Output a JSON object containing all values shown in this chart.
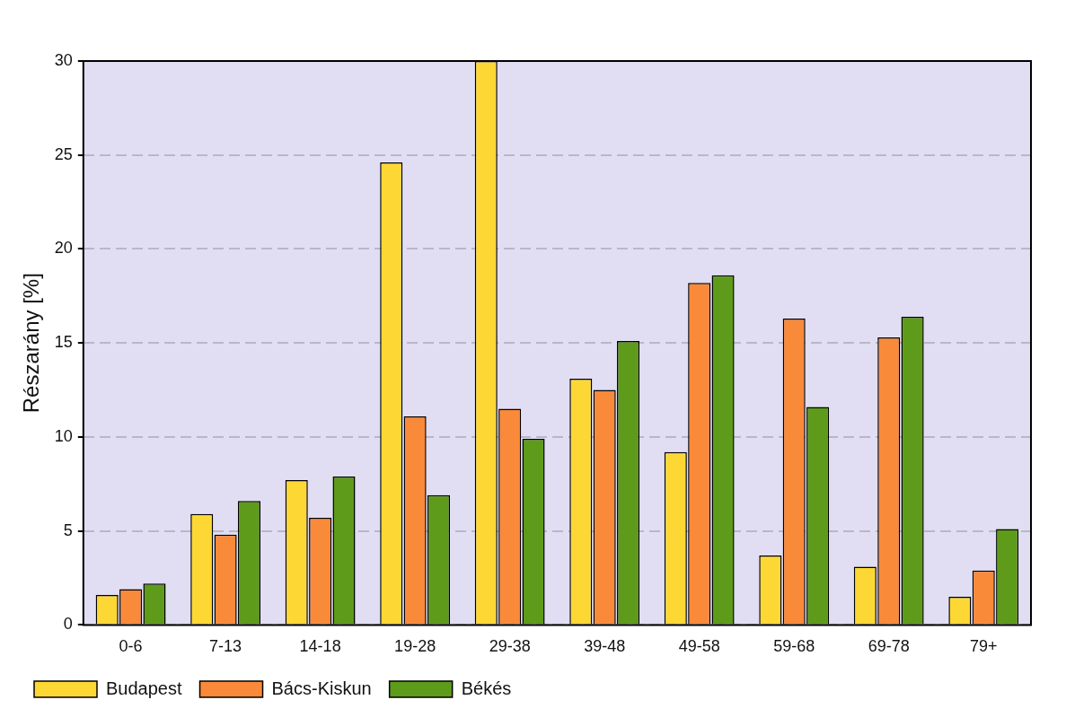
{
  "chart_data": {
    "type": "bar",
    "ylabel": "Részarány [%]",
    "categories": [
      "0-6",
      "7-13",
      "14-18",
      "19-28",
      "29-38",
      "39-48",
      "49-58",
      "59-68",
      "69-78",
      "79+"
    ],
    "series": [
      {
        "name": "Budapest",
        "color": "#fdd835",
        "values": [
          1.6,
          5.9,
          7.7,
          24.6,
          30,
          13.1,
          9.2,
          3.7,
          3.1,
          1.5
        ]
      },
      {
        "name": "Bács-Kiskun",
        "color": "#f98a3a",
        "values": [
          1.9,
          4.8,
          5.7,
          11.1,
          11.5,
          12.5,
          18.2,
          16.3,
          15.3,
          2.9
        ]
      },
      {
        "name": "Békés",
        "color": "#5e9b1a",
        "values": [
          2.2,
          6.6,
          7.9,
          6.9,
          9.9,
          15.1,
          18.6,
          11.6,
          16.4,
          5.1
        ]
      }
    ],
    "ylim": [
      0,
      30
    ],
    "yticks": [
      0,
      5,
      10,
      15,
      20,
      25,
      30
    ],
    "grid": "y",
    "legend": "bottom left"
  }
}
